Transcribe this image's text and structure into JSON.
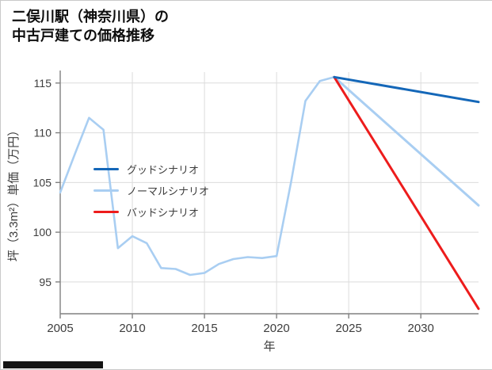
{
  "title": {
    "line1": "二俣川駅（神奈川県）の",
    "line2": "中古戸建ての価格推移"
  },
  "chart_data": {
    "type": "line",
    "title": "二俣川駅（神奈川県）の中古戸建ての価格推移",
    "xlabel": "年",
    "ylabel": "坪（3.3m²）単価（万円）",
    "xlim": [
      2005,
      2034
    ],
    "ylim": [
      91.8,
      116.1
    ],
    "xticks": [
      2005,
      2010,
      2015,
      2020,
      2025,
      2030
    ],
    "yticks": [
      95,
      100,
      105,
      110,
      115
    ],
    "grid": true,
    "legend_position": "upper-left-inside",
    "colors": {
      "grid": "#dcdcdc",
      "axis": "#808080",
      "text": "#3d3d3d",
      "good": "#1467b8",
      "normal": "#a9cef2",
      "bad": "#ed1c1c"
    },
    "series": [
      {
        "id": "history",
        "color": "#a9cef2",
        "width": 2.6,
        "x": [
          2005,
          2006,
          2007,
          2008,
          2009,
          2010,
          2011,
          2012,
          2013,
          2014,
          2015,
          2016,
          2017,
          2018,
          2019,
          2020,
          2021,
          2022,
          2023,
          2024
        ],
        "y": [
          104.0,
          107.8,
          111.5,
          110.3,
          98.4,
          99.6,
          98.9,
          96.4,
          96.3,
          95.7,
          95.9,
          96.8,
          97.3,
          97.5,
          97.4,
          97.6,
          105.0,
          113.2,
          115.2,
          115.6
        ]
      },
      {
        "id": "normal-scenario",
        "color": "#a9cef2",
        "width": 3,
        "x": [
          2024,
          2034
        ],
        "y": [
          115.6,
          102.7
        ]
      },
      {
        "id": "bad-scenario",
        "color": "#ed1c1c",
        "width": 3,
        "x": [
          2024,
          2034
        ],
        "y": [
          115.6,
          92.3
        ]
      },
      {
        "id": "good-scenario",
        "color": "#1467b8",
        "width": 3,
        "x": [
          2024,
          2034
        ],
        "y": [
          115.6,
          113.1
        ]
      }
    ],
    "legend": [
      {
        "label": "グッドシナリオ",
        "color": "#1467b8"
      },
      {
        "label": "ノーマルシナリオ",
        "color": "#a9cef2"
      },
      {
        "label": "バッドシナリオ",
        "color": "#ed1c1c"
      }
    ]
  }
}
